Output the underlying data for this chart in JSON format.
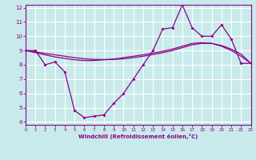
{
  "background_color": "#c8eaea",
  "grid_color": "#ffffff",
  "line_color": "#8b008b",
  "xlabel": "Windchill (Refroidissement éolien,°C)",
  "xlabel_color": "#8b008b",
  "tick_color": "#8b008b",
  "xlim": [
    0,
    23
  ],
  "ylim": [
    3.8,
    12.2
  ],
  "yticks": [
    4,
    5,
    6,
    7,
    8,
    9,
    10,
    11,
    12
  ],
  "xticks": [
    0,
    1,
    2,
    3,
    4,
    5,
    6,
    7,
    8,
    9,
    10,
    11,
    12,
    13,
    14,
    15,
    16,
    17,
    18,
    19,
    20,
    21,
    22,
    23
  ],
  "series1_x": [
    0,
    1,
    2,
    3,
    4,
    5,
    6,
    7,
    8,
    9,
    10,
    11,
    12,
    13,
    14,
    15,
    16,
    17,
    18,
    19,
    20,
    21,
    22,
    23
  ],
  "series1_y": [
    9.0,
    9.0,
    8.0,
    8.2,
    7.5,
    4.8,
    4.3,
    4.4,
    4.5,
    5.3,
    6.0,
    7.0,
    8.0,
    9.0,
    10.5,
    10.6,
    12.2,
    10.6,
    10.0,
    10.0,
    10.8,
    9.8,
    8.1,
    8.1
  ],
  "series2_x": [
    0,
    1,
    2,
    3,
    4,
    5,
    6,
    7,
    8,
    9,
    10,
    11,
    12,
    13,
    14,
    15,
    16,
    17,
    18,
    19,
    20,
    21,
    22,
    23
  ],
  "series2_y": [
    9.0,
    8.85,
    8.7,
    8.55,
    8.45,
    8.35,
    8.3,
    8.3,
    8.35,
    8.4,
    8.5,
    8.6,
    8.7,
    8.82,
    8.95,
    9.1,
    9.3,
    9.5,
    9.55,
    9.5,
    9.3,
    9.0,
    8.6,
    8.1
  ],
  "series3_x": [
    0,
    1,
    2,
    3,
    4,
    5,
    6,
    7,
    8,
    9,
    10,
    11,
    12,
    13,
    14,
    15,
    16,
    17,
    18,
    19,
    20,
    21,
    22,
    23
  ],
  "series3_y": [
    9.0,
    8.9,
    8.8,
    8.7,
    8.6,
    8.5,
    8.42,
    8.38,
    8.37,
    8.38,
    8.42,
    8.5,
    8.6,
    8.72,
    8.85,
    9.0,
    9.2,
    9.4,
    9.5,
    9.5,
    9.35,
    9.1,
    8.75,
    8.1
  ]
}
